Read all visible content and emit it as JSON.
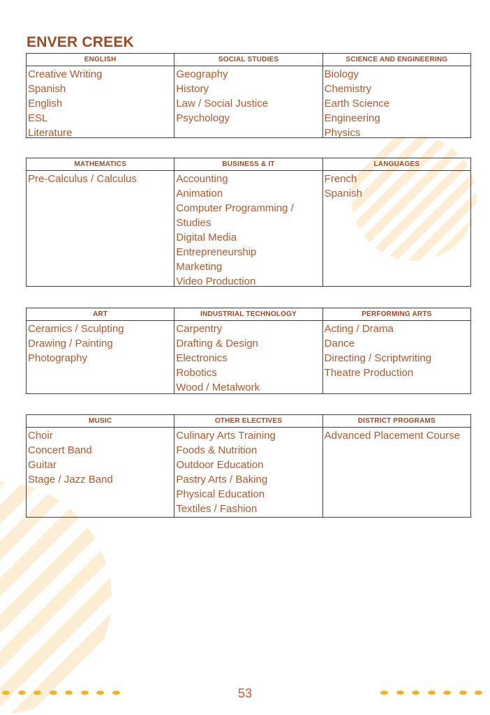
{
  "page": {
    "title": "ENVER CREEK",
    "page_number": "53"
  },
  "tables": [
    {
      "columns": [
        {
          "header": "ENGLISH",
          "courses": [
            "Creative Writing",
            "Spanish",
            "English",
            "ESL",
            "Literature"
          ]
        },
        {
          "header": "SOCIAL STUDIES",
          "courses": [
            "Geography",
            "History",
            "Law / Social Justice",
            "Psychology"
          ]
        },
        {
          "header": "SCIENCE AND ENGINEERING",
          "courses": [
            "Biology",
            "Chemistry",
            "Earth Science",
            "Engineering",
            "Physics"
          ]
        }
      ]
    },
    {
      "columns": [
        {
          "header": "MATHEMATICS",
          "courses": [
            "Pre-Calculus / Calculus"
          ]
        },
        {
          "header": "BUSINESS & IT",
          "courses": [
            "Accounting",
            "Animation",
            "Computer Programming / Studies",
            "Digital Media",
            "Entrepreneurship",
            "Marketing",
            "Video Production"
          ]
        },
        {
          "header": "LANGUAGES",
          "courses": [
            "French",
            "Spanish"
          ]
        }
      ]
    },
    {
      "columns": [
        {
          "header": "ART",
          "courses": [
            "Ceramics / Sculpting",
            "Drawing / Painting",
            "Photography"
          ]
        },
        {
          "header": "INDUSTRIAL TECHNOLOGY",
          "courses": [
            "Carpentry",
            "Drafting & Design",
            "Electronics",
            "Robotics",
            "Wood / Metalwork"
          ]
        },
        {
          "header": "PERFORMING ARTS",
          "courses": [
            "Acting / Drama",
            "Dance",
            "Directing / Scriptwriting",
            "Theatre Production"
          ]
        }
      ]
    },
    {
      "columns": [
        {
          "header": "MUSIC",
          "courses": [
            "Choir",
            "Concert Band",
            "Guitar",
            "Stage / Jazz Band"
          ]
        },
        {
          "header": "OTHER ELECTIVES",
          "courses": [
            "Culinary Arts Training",
            "Foods & Nutrition",
            "Outdoor Education",
            "Pastry Arts / Baking",
            "Physical Education",
            "Textiles / Fashion"
          ]
        },
        {
          "header": "DISTRICT PROGRAMS",
          "courses": [
            "Advanced Placement Course"
          ]
        }
      ]
    }
  ],
  "colors": {
    "title_text": "#9c4a21",
    "header_text": "#9c4a28",
    "course_text": "#b0592f",
    "table_border": "#3d3d3d",
    "page_number_text": "#da5038",
    "dot_accent": "#f3b21f",
    "stripe_decor": "#fbeed4"
  }
}
